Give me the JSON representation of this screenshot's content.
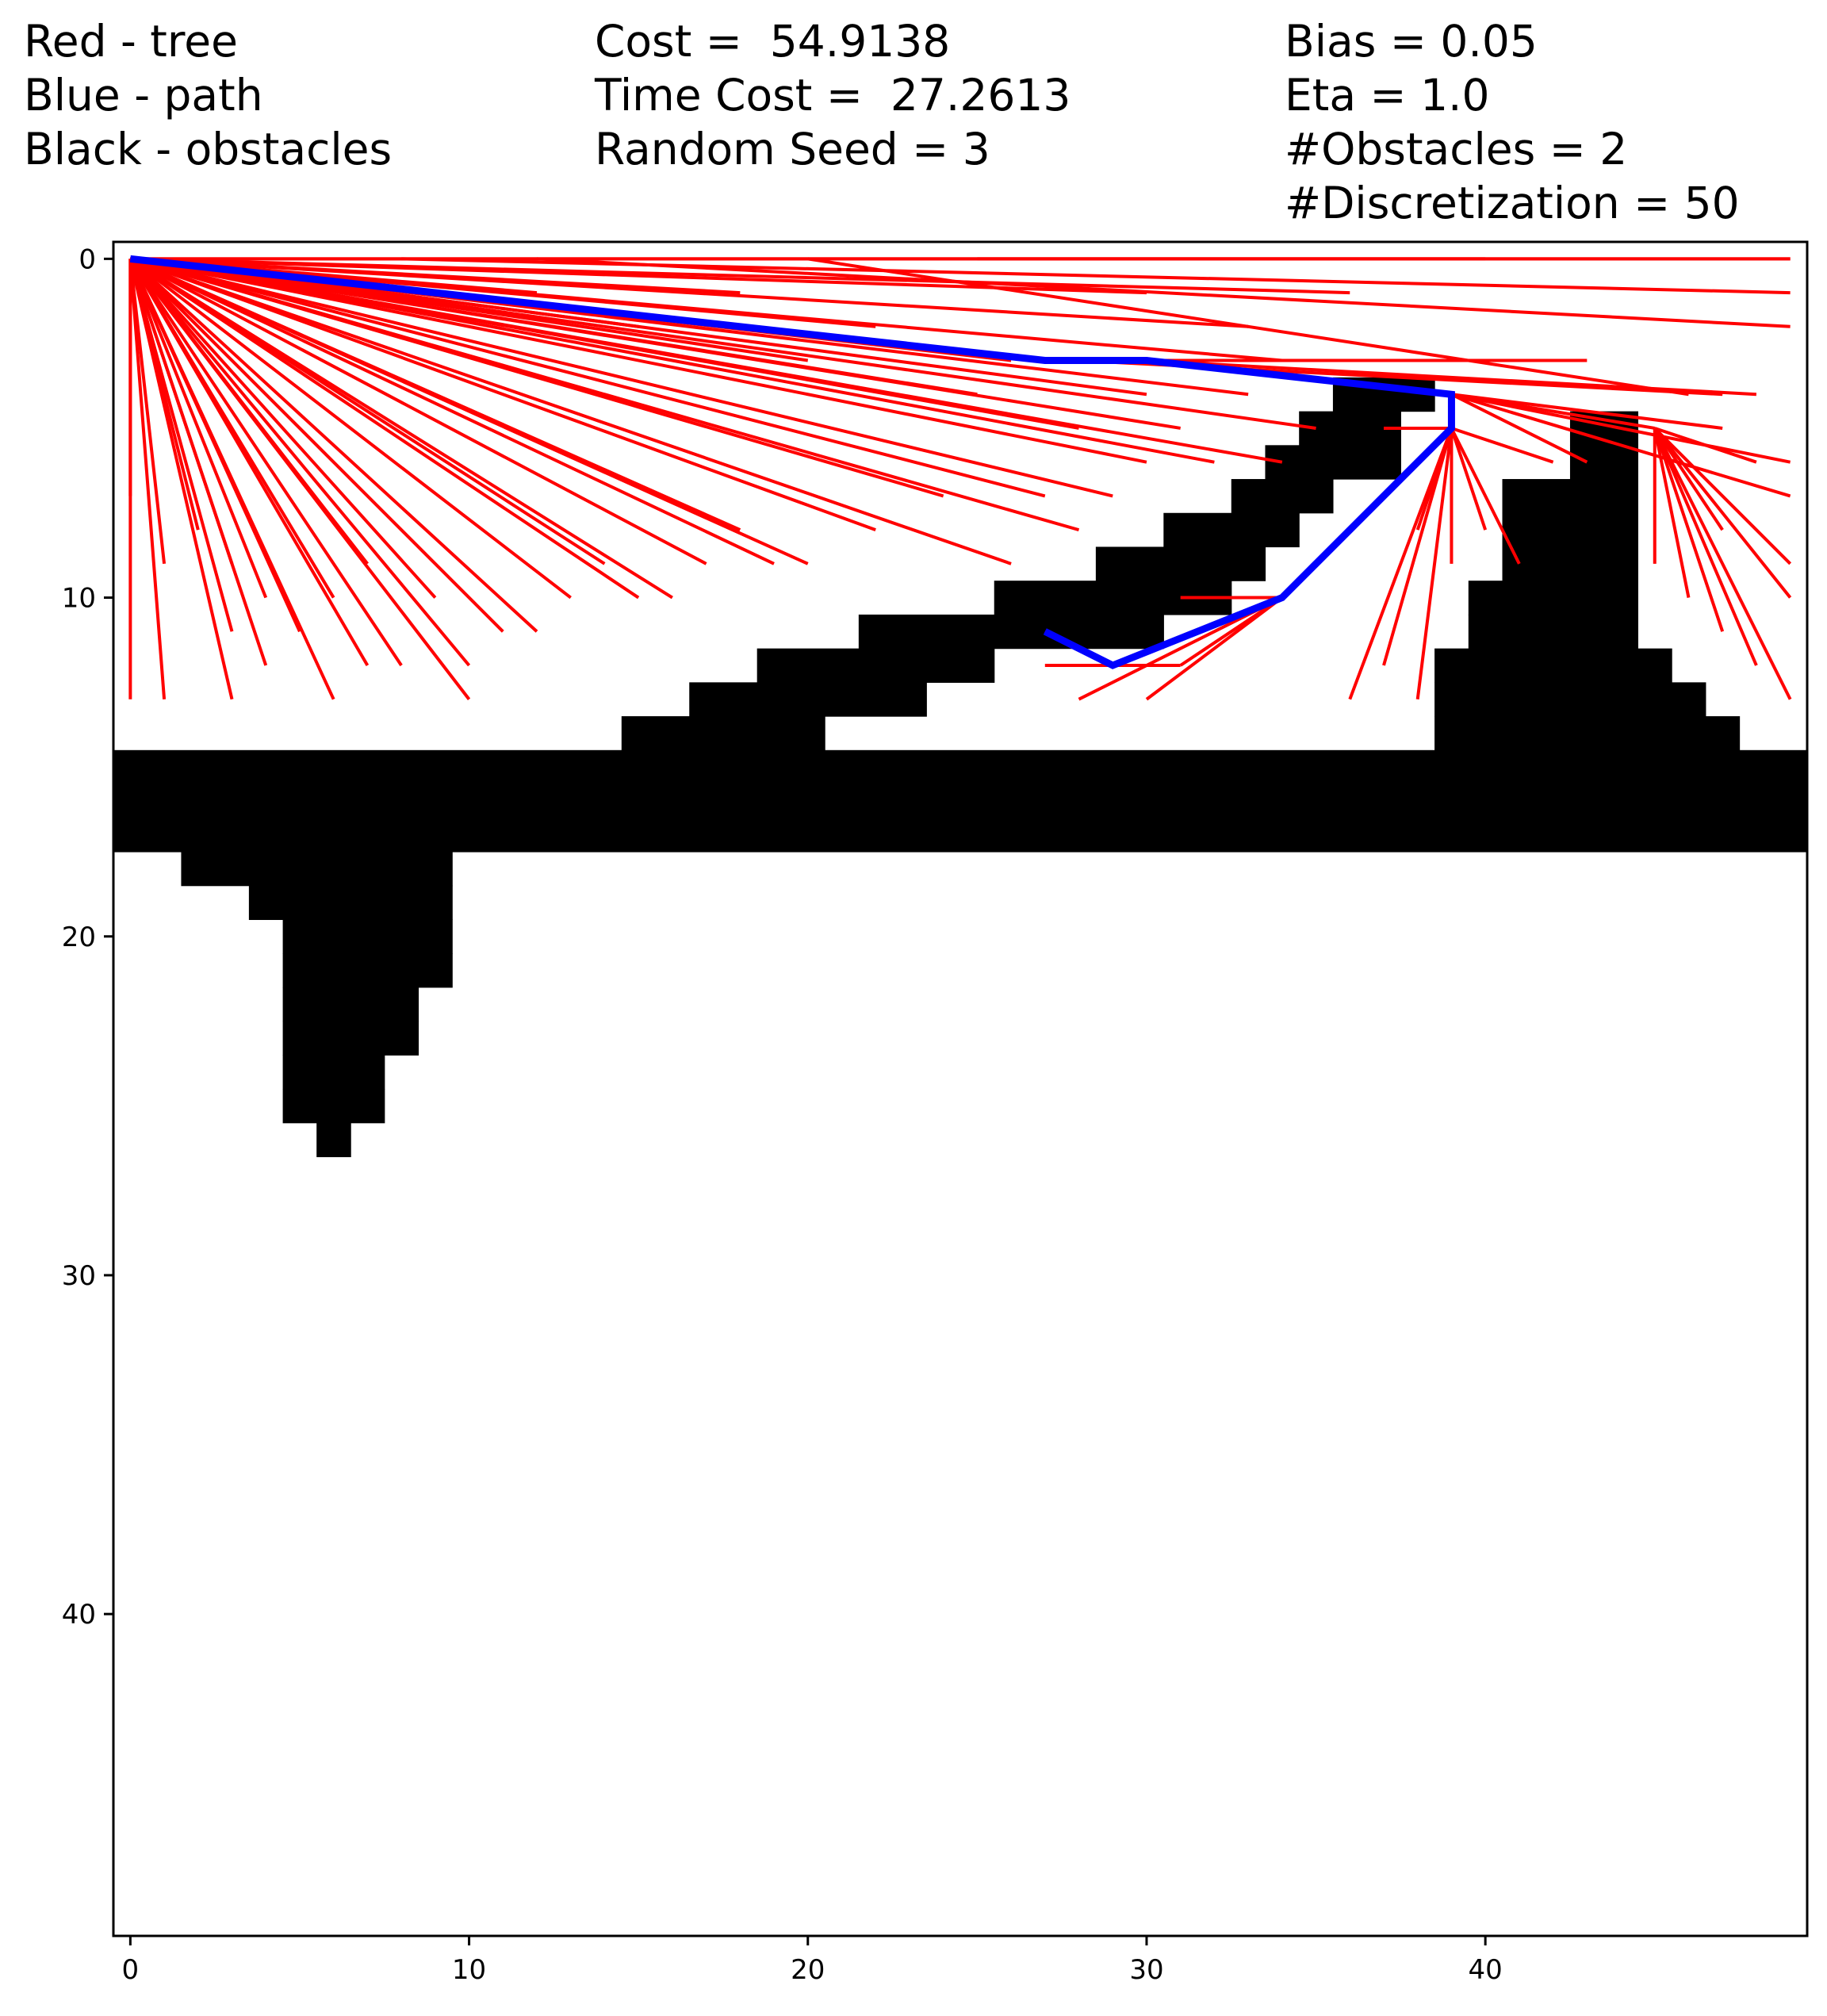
{
  "header": {
    "legend": [
      "Red - tree",
      "Blue - path",
      "Black - obstacles"
    ],
    "stats": [
      "Cost =  54.9138",
      "Time Cost =  27.2613",
      "Random Seed = 3"
    ],
    "params": [
      "Bias = 0.05",
      "Eta = 1.0",
      "#Obstacles = 2",
      "#Discretization = 50"
    ]
  },
  "colors": {
    "tree": "#ff0000",
    "path": "#0000ff",
    "obstacles": "#000000"
  },
  "chart_data": {
    "type": "line",
    "xlim": [
      -0.5,
      49.5
    ],
    "ylim": [
      49.5,
      -0.5
    ],
    "y_inverted": true,
    "xticks": [
      0,
      10,
      20,
      30,
      40
    ],
    "yticks": [
      0,
      10,
      20,
      30,
      40
    ],
    "obstacle_cells": [
      [
        [
          36,
          37,
          38
        ],
        4
      ],
      [
        [
          35,
          36,
          37
        ],
        5
      ],
      [
        [
          34,
          35,
          36,
          37
        ],
        6
      ],
      [
        [
          33,
          34,
          35
        ],
        7
      ],
      [
        [
          31,
          32,
          33,
          34
        ],
        8
      ],
      [
        [
          29,
          30,
          31,
          32,
          33
        ],
        9
      ],
      [
        [
          26,
          27,
          28,
          29,
          30,
          31,
          32
        ],
        10
      ],
      [
        [
          22,
          23,
          24,
          25,
          26,
          27,
          28,
          29,
          30
        ],
        11
      ],
      [
        [
          19,
          20,
          21,
          22,
          23,
          24,
          25
        ],
        12
      ],
      [
        [
          17,
          18,
          19,
          20,
          21,
          22,
          23
        ],
        13
      ],
      [
        [
          15,
          16,
          17,
          18,
          19,
          20
        ],
        14
      ],
      [
        [
          43,
          44
        ],
        5
      ],
      [
        [
          43,
          44
        ],
        6
      ],
      [
        [
          41,
          42,
          43,
          44
        ],
        7
      ],
      [
        [
          41,
          42,
          43,
          44
        ],
        8
      ],
      [
        [
          41,
          42,
          43,
          44
        ],
        9
      ],
      [
        [
          40,
          41,
          42,
          43,
          44
        ],
        10
      ],
      [
        [
          40,
          41,
          42,
          43,
          44
        ],
        11
      ],
      [
        [
          39,
          40,
          41,
          42,
          43,
          44,
          45
        ],
        12
      ],
      [
        [
          39,
          40,
          41,
          42,
          43,
          44,
          45,
          46
        ],
        13
      ],
      [
        [
          39,
          40,
          41,
          42,
          43,
          44,
          45,
          46,
          47
        ],
        14
      ],
      [
        [
          0,
          49
        ],
        15
      ],
      [
        [
          0,
          49
        ],
        16
      ],
      [
        [
          0,
          49
        ],
        17
      ],
      [
        [
          2,
          9
        ],
        18
      ],
      [
        [
          4,
          9
        ],
        19
      ],
      [
        [
          5,
          9
        ],
        20
      ],
      [
        [
          5,
          9
        ],
        21
      ],
      [
        [
          5,
          8
        ],
        22
      ],
      [
        [
          5,
          8
        ],
        23
      ],
      [
        [
          5,
          7
        ],
        24
      ],
      [
        [
          5,
          7
        ],
        25
      ],
      [
        [
          6,
          6
        ],
        26
      ]
    ],
    "series": [
      {
        "name": "tree",
        "segments": [
          [
            [
              0,
              0
            ],
            [
              0,
              13
            ]
          ],
          [
            [
              0,
              0
            ],
            [
              1,
              13
            ]
          ],
          [
            [
              0,
              0
            ],
            [
              3,
              13
            ]
          ],
          [
            [
              0,
              0
            ],
            [
              6,
              13
            ]
          ],
          [
            [
              0,
              0
            ],
            [
              10,
              13
            ]
          ],
          [
            [
              0,
              0
            ],
            [
              0,
              7
            ]
          ],
          [
            [
              0,
              0
            ],
            [
              1,
              9
            ]
          ],
          [
            [
              0,
              0
            ],
            [
              3,
              11
            ]
          ],
          [
            [
              0,
              0
            ],
            [
              4,
              12
            ]
          ],
          [
            [
              0,
              0
            ],
            [
              5,
              11
            ]
          ],
          [
            [
              0,
              0
            ],
            [
              7,
              12
            ]
          ],
          [
            [
              0,
              0
            ],
            [
              8,
              12
            ]
          ],
          [
            [
              0,
              0
            ],
            [
              10,
              12
            ]
          ],
          [
            [
              0,
              0
            ],
            [
              11,
              11
            ]
          ],
          [
            [
              0,
              0
            ],
            [
              2,
              8
            ]
          ],
          [
            [
              0,
              0
            ],
            [
              3,
              9
            ]
          ],
          [
            [
              0,
              0
            ],
            [
              4,
              10
            ]
          ],
          [
            [
              0,
              0
            ],
            [
              6,
              10
            ]
          ],
          [
            [
              0,
              0
            ],
            [
              7,
              9
            ]
          ],
          [
            [
              0,
              0
            ],
            [
              9,
              10
            ]
          ],
          [
            [
              0,
              0
            ],
            [
              12,
              11
            ]
          ],
          [
            [
              0,
              0
            ],
            [
              13,
              10
            ]
          ],
          [
            [
              0,
              0
            ],
            [
              14,
              9
            ]
          ],
          [
            [
              0,
              0
            ],
            [
              15,
              10
            ]
          ],
          [
            [
              0,
              0
            ],
            [
              16,
              10
            ]
          ],
          [
            [
              0,
              0
            ],
            [
              17,
              9
            ]
          ],
          [
            [
              0,
              0
            ],
            [
              19,
              9
            ]
          ],
          [
            [
              0,
              0
            ],
            [
              20,
              9
            ]
          ],
          [
            [
              0,
              0
            ],
            [
              18,
              8
            ]
          ],
          [
            [
              0,
              0
            ],
            [
              22,
              8
            ]
          ],
          [
            [
              0,
              0
            ],
            [
              24,
              7
            ]
          ],
          [
            [
              0,
              0
            ],
            [
              27,
              7
            ]
          ],
          [
            [
              0,
              0
            ],
            [
              29,
              7
            ]
          ],
          [
            [
              0,
              0
            ],
            [
              28,
              8
            ]
          ],
          [
            [
              0,
              0
            ],
            [
              26,
              9
            ]
          ],
          [
            [
              0,
              0
            ],
            [
              30,
              6
            ]
          ],
          [
            [
              0,
              0
            ],
            [
              32,
              6
            ]
          ],
          [
            [
              0,
              0
            ],
            [
              34,
              6
            ]
          ],
          [
            [
              0,
              0
            ],
            [
              28,
              5
            ]
          ],
          [
            [
              0,
              0
            ],
            [
              31,
              5
            ]
          ],
          [
            [
              0,
              0
            ],
            [
              35,
              5
            ]
          ],
          [
            [
              0,
              0
            ],
            [
              25,
              4
            ]
          ],
          [
            [
              0,
              0
            ],
            [
              30,
              4
            ]
          ],
          [
            [
              0,
              0
            ],
            [
              33,
              4
            ]
          ],
          [
            [
              0,
              0
            ],
            [
              20,
              3
            ]
          ],
          [
            [
              0,
              0
            ],
            [
              26,
              3
            ]
          ],
          [
            [
              0,
              0
            ],
            [
              34,
              3
            ]
          ],
          [
            [
              0,
              0
            ],
            [
              15,
              2
            ]
          ],
          [
            [
              0,
              0
            ],
            [
              22,
              2
            ]
          ],
          [
            [
              0,
              0
            ],
            [
              33,
              2
            ]
          ],
          [
            [
              0,
              0
            ],
            [
              12,
              1
            ]
          ],
          [
            [
              0,
              0
            ],
            [
              18,
              1
            ]
          ],
          [
            [
              0,
              0
            ],
            [
              30,
              1
            ]
          ],
          [
            [
              0,
              0
            ],
            [
              36,
              1
            ]
          ],
          [
            [
              0,
              0
            ],
            [
              40,
              0
            ]
          ],
          [
            [
              0,
              0
            ],
            [
              49,
              0
            ]
          ],
          [
            [
              8,
              0
            ],
            [
              49,
              1
            ]
          ],
          [
            [
              12,
              0
            ],
            [
              49,
              2
            ]
          ],
          [
            [
              20,
              0
            ],
            [
              46,
              4
            ]
          ],
          [
            [
              25,
              0
            ],
            [
              49,
              0
            ]
          ],
          [
            [
              30,
              3
            ],
            [
              43,
              3
            ]
          ],
          [
            [
              28,
              3
            ],
            [
              47,
              4
            ]
          ],
          [
            [
              30,
              3
            ],
            [
              48,
              4
            ]
          ],
          [
            [
              39,
              4
            ],
            [
              43,
              6
            ]
          ],
          [
            [
              39,
              4
            ],
            [
              49,
              6
            ]
          ],
          [
            [
              39,
              4
            ],
            [
              49,
              7
            ]
          ],
          [
            [
              39,
              4
            ],
            [
              47,
              5
            ]
          ],
          [
            [
              39,
              4
            ],
            [
              45,
              5
            ]
          ],
          [
            [
              39,
              5
            ],
            [
              36,
              13
            ]
          ],
          [
            [
              39,
              5
            ],
            [
              37,
              12
            ]
          ],
          [
            [
              39,
              5
            ],
            [
              38,
              13
            ]
          ],
          [
            [
              39,
              5
            ],
            [
              39,
              9
            ]
          ],
          [
            [
              39,
              5
            ],
            [
              40,
              8
            ]
          ],
          [
            [
              39,
              5
            ],
            [
              41,
              9
            ]
          ],
          [
            [
              39,
              5
            ],
            [
              38,
              8
            ]
          ],
          [
            [
              39,
              5
            ],
            [
              42,
              6
            ]
          ],
          [
            [
              39,
              5
            ],
            [
              37,
              5
            ]
          ],
          [
            [
              45,
              5
            ],
            [
              45,
              9
            ]
          ],
          [
            [
              45,
              5
            ],
            [
              46,
              10
            ]
          ],
          [
            [
              45,
              5
            ],
            [
              47,
              11
            ]
          ],
          [
            [
              45,
              5
            ],
            [
              48,
              12
            ]
          ],
          [
            [
              45,
              5
            ],
            [
              49,
              13
            ]
          ],
          [
            [
              45,
              5
            ],
            [
              49,
              10
            ]
          ],
          [
            [
              45,
              5
            ],
            [
              49,
              9
            ]
          ],
          [
            [
              45,
              5
            ],
            [
              48,
              6
            ]
          ],
          [
            [
              45,
              5
            ],
            [
              47,
              8
            ]
          ],
          [
            [
              34,
              10
            ],
            [
              31,
              10
            ]
          ],
          [
            [
              34,
              10
            ],
            [
              31,
              12
            ]
          ],
          [
            [
              34,
              10
            ],
            [
              30,
              13
            ]
          ],
          [
            [
              34,
              10
            ],
            [
              28,
              13
            ]
          ],
          [
            [
              29,
              12
            ],
            [
              27,
              12
            ]
          ],
          [
            [
              29,
              12
            ],
            [
              31,
              12
            ]
          ],
          [
            [
              29,
              12
            ],
            [
              27,
              11
            ]
          ]
        ]
      },
      {
        "name": "path",
        "points": [
          [
            0,
            0
          ],
          [
            27,
            3
          ],
          [
            30,
            3
          ],
          [
            39,
            4
          ],
          [
            39,
            5
          ],
          [
            34,
            10
          ],
          [
            29,
            12
          ],
          [
            27,
            11
          ]
        ]
      }
    ]
  }
}
